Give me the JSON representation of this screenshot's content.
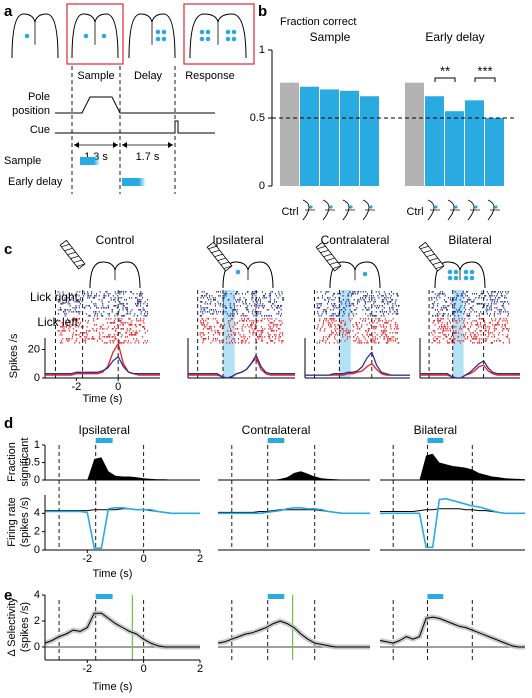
{
  "panel_labels": [
    "a",
    "b",
    "c",
    "d",
    "e"
  ],
  "time": [
    -3.5,
    -3.25,
    -3,
    -2.75,
    -2.5,
    -2.25,
    -2,
    -1.75,
    -1.5,
    -1.25,
    -1,
    -0.75,
    -0.5,
    -0.25,
    0,
    0.25,
    0.5,
    0.75,
    1,
    1.25,
    1.5,
    1.75,
    2
  ],
  "epoch_boundaries": [
    -3,
    -1.7,
    0
  ],
  "photostim": [
    -1.7,
    -1.1
  ],
  "colors": {
    "stim": "#29abe2",
    "ctrl": "#b3b3b3",
    "right": "#2e3192",
    "left": "#ed1c24",
    "frame": "#e0393e",
    "marker": "#6abf4b"
  },
  "panel_a": {
    "epochs": [
      "Sample",
      "Delay",
      "Response"
    ],
    "pole_label": [
      "Pole",
      "position"
    ],
    "cue_label": "Cue",
    "durations": [
      "1.3 s",
      "1.7 s"
    ],
    "conditions": [
      "Sample",
      "Early delay"
    ]
  },
  "panel_b": {
    "type": "bar",
    "title": "Fraction correct",
    "groups": [
      {
        "name": "Sample",
        "categories": [
          "Ctrl",
          null,
          null,
          null,
          null
        ],
        "values": [
          0.76,
          0.73,
          0.71,
          0.7,
          0.66
        ]
      },
      {
        "name": "Early delay",
        "categories": [
          "Ctrl",
          null,
          null,
          null,
          null
        ],
        "values": [
          0.76,
          0.66,
          0.55,
          0.63,
          0.5
        ]
      }
    ],
    "ylim": [
      0,
      1
    ],
    "yticks": [
      0,
      0.5,
      1
    ],
    "chance": 0.5,
    "significance": [
      "**",
      "***"
    ]
  },
  "panel_c": {
    "type": "line",
    "legend": [
      "Lick right",
      "Lick left"
    ],
    "ylabel": "Spikes /s",
    "xlabel": "Time (s)",
    "xlim": [
      -3.5,
      2
    ],
    "xticks": [
      -2,
      0
    ],
    "ylim": [
      0,
      28
    ],
    "yticks": [
      0,
      20
    ],
    "columns": [
      {
        "title": "Control",
        "title_color": "#000000",
        "lick_right": [
          3,
          3,
          3,
          3,
          3,
          3,
          4,
          4,
          4,
          4,
          4,
          5,
          7,
          12,
          15,
          8,
          4,
          3,
          3,
          3,
          3,
          3,
          3
        ],
        "lick_left": [
          2,
          2,
          2,
          2,
          2,
          2,
          3,
          3,
          3,
          3,
          3,
          4,
          8,
          18,
          24,
          10,
          4,
          3,
          2,
          2,
          2,
          2,
          2
        ]
      },
      {
        "title": "Ipsilateral",
        "title_color": "#29abe2",
        "lick_right": [
          3,
          3,
          3,
          3,
          3,
          3,
          3,
          1,
          0,
          1,
          3,
          4,
          6,
          10,
          16,
          8,
          4,
          3,
          3,
          3,
          3,
          3,
          3
        ],
        "lick_left": [
          2,
          2,
          2,
          2,
          2,
          2,
          2,
          1,
          0,
          1,
          3,
          4,
          6,
          10,
          14,
          6,
          3,
          2,
          2,
          2,
          2,
          2,
          2
        ]
      },
      {
        "title": "Contralateral",
        "title_color": "#29abe2",
        "lick_right": [
          2,
          2,
          2,
          2,
          2,
          2,
          3,
          3,
          3,
          4,
          4,
          5,
          8,
          14,
          18,
          9,
          4,
          3,
          2,
          2,
          2,
          2,
          2
        ],
        "lick_left": [
          2,
          2,
          2,
          2,
          2,
          2,
          2,
          2,
          2,
          3,
          3,
          4,
          5,
          8,
          10,
          6,
          3,
          2,
          2,
          2,
          2,
          2,
          2
        ]
      },
      {
        "title": "Bilateral",
        "title_color": "#29abe2",
        "lick_right": [
          3,
          3,
          3,
          3,
          3,
          3,
          3,
          1,
          0,
          0,
          2,
          4,
          7,
          10,
          12,
          7,
          4,
          3,
          3,
          3,
          3,
          3,
          3
        ],
        "lick_left": [
          2,
          2,
          2,
          2,
          2,
          2,
          2,
          1,
          0,
          0,
          2,
          3,
          5,
          8,
          9,
          5,
          3,
          2,
          2,
          2,
          2,
          2,
          2
        ]
      }
    ]
  },
  "panel_d": {
    "type": "line",
    "fraction_label": [
      "Fraction",
      "significant"
    ],
    "rate_label": [
      "Firing rate",
      "(spikes /s)"
    ],
    "xlabel": "Time (s)",
    "xlim": [
      -3.5,
      2
    ],
    "xticks": [
      -2,
      0,
      2
    ],
    "fraction_ylim": [
      0,
      1
    ],
    "fraction_yticks": [
      0,
      0.5,
      1
    ],
    "rate_ylim": [
      0,
      6
    ],
    "rate_yticks": [
      0,
      2,
      4
    ],
    "columns": [
      {
        "title": "Ipsilateral",
        "fraction": [
          0,
          0,
          0,
          0,
          0,
          0,
          0,
          0.6,
          0.65,
          0.25,
          0.12,
          0.1,
          0.1,
          0.08,
          0.05,
          0.03,
          0.02,
          0.02,
          0.01,
          0.01,
          0.01,
          0.01,
          0.01
        ],
        "rate_control": [
          4.3,
          4.3,
          4.3,
          4.3,
          4.3,
          4.3,
          4.3,
          4.4,
          4.4,
          4.4,
          4.4,
          4.5,
          4.5,
          4.4,
          4.4,
          4.3,
          4.2,
          4.1,
          4,
          4,
          4,
          4,
          4
        ],
        "rate_stim": [
          4.2,
          4.2,
          4.2,
          4.2,
          4.2,
          4.2,
          4.1,
          0.2,
          0.2,
          4.5,
          4.6,
          4.6,
          4.5,
          4.4,
          4.4,
          4.4,
          4.2,
          4.1,
          4,
          4,
          4,
          4,
          4
        ]
      },
      {
        "title": "Contralateral",
        "fraction": [
          0,
          0,
          0,
          0,
          0,
          0,
          0,
          0,
          0,
          0.03,
          0.08,
          0.2,
          0.25,
          0.18,
          0.1,
          0.05,
          0.03,
          0.02,
          0.01,
          0.01,
          0.01,
          0.01,
          0.01
        ],
        "rate_control": [
          4.1,
          4.1,
          4.1,
          4.1,
          4.1,
          4.1,
          4.2,
          4.2,
          4.3,
          4.4,
          4.4,
          4.4,
          4.4,
          4.4,
          4.4,
          4.3,
          4.2,
          4.1,
          4,
          4,
          4,
          4,
          4
        ],
        "rate_stim": [
          4,
          4,
          4,
          4,
          4,
          4,
          4,
          4.1,
          4.2,
          4.3,
          4.5,
          4.6,
          4.6,
          4.5,
          4.5,
          4.4,
          4.2,
          4.1,
          4,
          4,
          4,
          4,
          4
        ]
      },
      {
        "title": "Bilateral",
        "fraction": [
          0,
          0,
          0,
          0,
          0,
          0,
          0,
          0.7,
          0.75,
          0.5,
          0.45,
          0.4,
          0.38,
          0.35,
          0.3,
          0.2,
          0.15,
          0.1,
          0.08,
          0.05,
          0.04,
          0.03,
          0.02
        ],
        "rate_control": [
          4.2,
          4.2,
          4.2,
          4.2,
          4.2,
          4.2,
          4.3,
          4.4,
          4.4,
          4.5,
          4.5,
          4.5,
          4.5,
          4.4,
          4.4,
          4.3,
          4.3,
          4.2,
          4.1,
          4,
          4,
          4,
          4
        ],
        "rate_stim": [
          4,
          4,
          4,
          4,
          4,
          4,
          4,
          0.3,
          0.3,
          5.5,
          5.6,
          5.4,
          5.2,
          5,
          4.8,
          4.7,
          4.5,
          4.3,
          4.1,
          4,
          4,
          4,
          4
        ]
      }
    ]
  },
  "panel_e": {
    "type": "line",
    "ylabel": [
      "Δ Selectivity",
      "(spikes /s)"
    ],
    "xlabel": "Time (s)",
    "xlim": [
      -3.5,
      2
    ],
    "xticks": [
      -2,
      0,
      2
    ],
    "ylim": [
      -1,
      4
    ],
    "yticks": [
      0,
      2,
      4
    ],
    "columns": [
      {
        "selectivity": [
          0.3,
          0.5,
          0.8,
          1,
          1.3,
          1.2,
          1.5,
          2.6,
          2.6,
          2.2,
          1.8,
          1.5,
          1.2,
          1,
          0.6,
          0.3,
          0.1,
          0,
          0,
          0,
          0,
          0,
          0
        ],
        "marker": -0.4
      },
      {
        "selectivity": [
          0.3,
          0.4,
          0.6,
          0.8,
          1,
          1.1,
          1.3,
          1.5,
          1.8,
          2,
          1.8,
          1.5,
          1,
          0.6,
          0.3,
          0.2,
          0.1,
          0,
          0,
          0,
          0,
          0,
          0
        ],
        "marker": -0.8
      },
      {
        "selectivity": [
          0.5,
          0.4,
          0.3,
          0.5,
          0.8,
          0.6,
          0.8,
          2.2,
          2.3,
          2.2,
          2,
          1.8,
          1.6,
          1.5,
          1.3,
          1.1,
          0.9,
          0.7,
          0.5,
          0.3,
          0.1,
          0,
          0
        ]
      }
    ]
  }
}
